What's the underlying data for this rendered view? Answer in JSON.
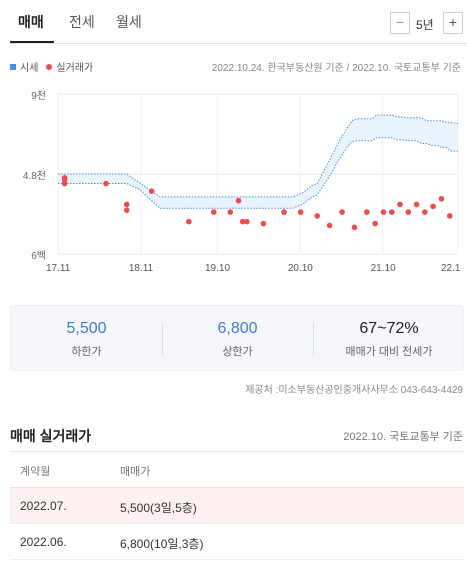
{
  "tabs": [
    {
      "label": "매매",
      "active": true
    },
    {
      "label": "전세",
      "active": false
    },
    {
      "label": "월세",
      "active": false
    }
  ],
  "period": {
    "minus": "−",
    "value": "5년",
    "plus": "+"
  },
  "legend": {
    "asking": "시세",
    "actual": "실거래가"
  },
  "basis": "2022.10.24. 한국부동산원 기준 / 2022.10. 국토교통부 기준",
  "chart_data": {
    "type": "scatter",
    "y_tick_labels": [
      "9천",
      "4.8천",
      "6백"
    ],
    "y_ticks": [
      9000,
      4800,
      600
    ],
    "ylim": [
      600,
      9000
    ],
    "x_tick_labels": [
      "17.11",
      "18.11",
      "19.10",
      "20.10",
      "21.10",
      "22.1"
    ],
    "x_ticks": [
      2017.87,
      2018.87,
      2019.79,
      2020.79,
      2021.79,
      2022.7
    ],
    "xlim": [
      2017.87,
      2022.7
    ],
    "band_x": [
      2017.87,
      2018.7,
      2018.75,
      2018.8,
      2018.85,
      2018.9,
      2018.95,
      2019.0,
      2019.05,
      2019.1,
      2019.2,
      2019.3,
      2019.4,
      2019.5,
      2019.6,
      2019.7,
      2019.8,
      2019.9,
      2020.0,
      2020.1,
      2020.2,
      2020.3,
      2020.4,
      2020.5,
      2020.6,
      2020.7,
      2020.76,
      2020.82,
      2020.88,
      2020.94,
      2021.0,
      2021.06,
      2021.12,
      2021.18,
      2021.24,
      2021.3,
      2021.36,
      2021.42,
      2021.48,
      2021.54,
      2021.6,
      2021.66,
      2021.72,
      2021.78,
      2021.84,
      2021.9,
      2021.96,
      2022.02,
      2022.08,
      2022.14,
      2022.2,
      2022.26,
      2022.32,
      2022.38,
      2022.44,
      2022.5,
      2022.56,
      2022.62,
      2022.7
    ],
    "band_upper": [
      4800,
      4800,
      4650,
      4500,
      4350,
      4200,
      4050,
      3900,
      3750,
      3600,
      3600,
      3600,
      3600,
      3600,
      3600,
      3600,
      3600,
      3600,
      3600,
      3600,
      3600,
      3600,
      3600,
      3600,
      3600,
      3600,
      3700,
      3800,
      4000,
      4200,
      4300,
      4800,
      5300,
      5800,
      6300,
      6800,
      7200,
      7600,
      7700,
      7700,
      7700,
      7700,
      7900,
      7900,
      7900,
      7900,
      7800,
      7800,
      7750,
      7750,
      7750,
      7750,
      7600,
      7600,
      7600,
      7600,
      7500,
      7500,
      7450
    ],
    "band_lower": [
      4300,
      4300,
      4200,
      4100,
      4000,
      3800,
      3600,
      3400,
      3200,
      3000,
      3000,
      3000,
      3000,
      3000,
      3000,
      3000,
      3000,
      3000,
      3000,
      3000,
      3000,
      3000,
      3000,
      3000,
      3000,
      3000,
      3100,
      3200,
      3400,
      3600,
      3700,
      4100,
      4500,
      4900,
      5400,
      5800,
      6200,
      6500,
      6550,
      6550,
      6550,
      6550,
      6700,
      6700,
      6700,
      6700,
      6600,
      6600,
      6550,
      6550,
      6550,
      6400,
      6400,
      6300,
      6300,
      6200,
      6200,
      6000,
      6000
    ],
    "points_x": [
      2017.95,
      2017.95,
      2017.95,
      2018.45,
      2018.7,
      2018.7,
      2019.0,
      2019.45,
      2019.75,
      2019.95,
      2020.05,
      2020.1,
      2020.15,
      2020.35,
      2020.6,
      2020.8,
      2021.0,
      2021.15,
      2021.3,
      2021.45,
      2021.6,
      2021.7,
      2021.8,
      2021.9,
      2022.0,
      2022.1,
      2022.2,
      2022.3,
      2022.4,
      2022.5,
      2022.6
    ],
    "points_y": [
      4600,
      4500,
      4300,
      4300,
      3200,
      2900,
      3900,
      2300,
      2800,
      2800,
      3400,
      2300,
      2300,
      2200,
      2800,
      2800,
      2600,
      2100,
      2800,
      2000,
      2800,
      2200,
      2800,
      2800,
      3200,
      2800,
      3200,
      2800,
      3100,
      3500,
      2600
    ]
  },
  "summary": [
    {
      "value": "5,500",
      "label": "하한가"
    },
    {
      "value": "6,800",
      "label": "상한가"
    },
    {
      "value": "67~72%",
      "label": "매매가 대비 전세가"
    }
  ],
  "provider": "제공처 :미소부동산공인중개사사무소 043-643-4429",
  "trades": {
    "title": "매매 실거래가",
    "basis": "2022.10. 국토교통부 기준",
    "headers": [
      "계약월",
      "매매가"
    ],
    "rows": [
      {
        "month": "2022.07.",
        "price": "5,500(3일,5층)"
      },
      {
        "month": "2022.06.",
        "price": "6,800(10일,3층)"
      }
    ]
  },
  "colors": {
    "accent_blue": "#3a7ed6",
    "dot_red": "#ef4c4c",
    "band_fill": "#e8f3fc",
    "band_line": "#4a90e2"
  }
}
